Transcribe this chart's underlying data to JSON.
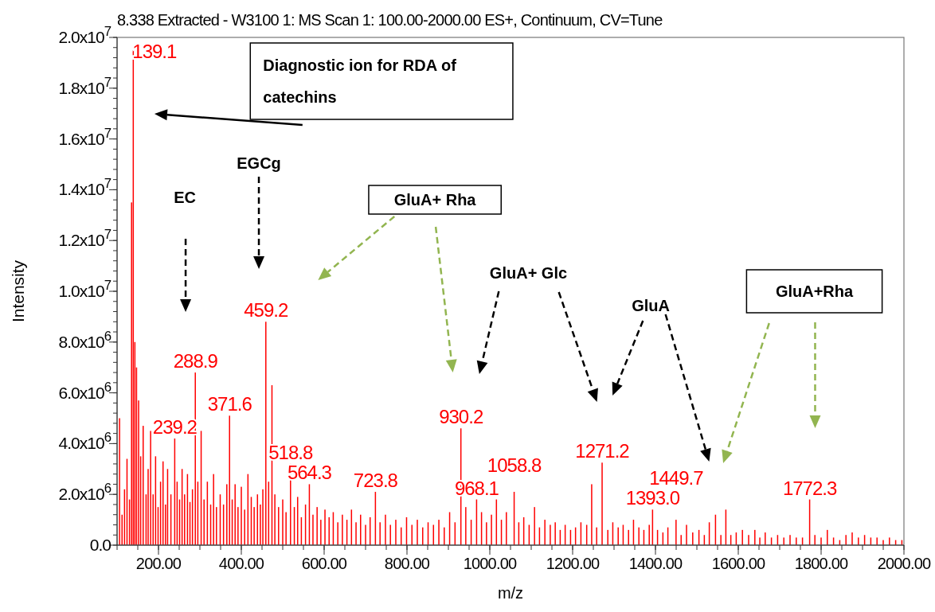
{
  "chart_data": {
    "type": "bar",
    "title": "8.338 Extracted - W3100 1: MS Scan 1: 100.00-2000.00 ES+, Continuum, CV=Tune",
    "xlabel": "m/z",
    "ylabel": "Intensity",
    "color": "#ff0000",
    "grid": false,
    "xlim": [
      100,
      2000
    ],
    "xticks": [
      {
        "value": 200,
        "label": "200.00"
      },
      {
        "value": 400,
        "label": "400.00"
      },
      {
        "value": 600,
        "label": "600.00"
      },
      {
        "value": 800,
        "label": "800.00"
      },
      {
        "value": 1000,
        "label": "1000.00"
      },
      {
        "value": 1200,
        "label": "1200.00"
      },
      {
        "value": 1400,
        "label": "1400.00"
      },
      {
        "value": 1600,
        "label": "1600.00"
      },
      {
        "value": 1800,
        "label": "1800.00"
      },
      {
        "value": 2000,
        "label": "2000.00"
      }
    ],
    "ylim": [
      0,
      20000000
    ],
    "yticks": [
      {
        "value": 0,
        "label": "0.0"
      },
      {
        "value": 2000000,
        "label": "2.0x10$^{6}$"
      },
      {
        "value": 4000000,
        "label": "4.0x10$^{6}$"
      },
      {
        "value": 6000000,
        "label": "6.0x10$^{6}$"
      },
      {
        "value": 8000000,
        "label": "8.0x10$^{6}$"
      },
      {
        "value": 10000000,
        "label": "1.0x10$^{7}$"
      },
      {
        "value": 12000000,
        "label": "1.2x10$^{7}$"
      },
      {
        "value": 14000000,
        "label": "1.4x10$^{7}$"
      },
      {
        "value": 16000000,
        "label": "1.6x10$^{7}$"
      },
      {
        "value": 18000000,
        "label": "1.8x10$^{7}$"
      },
      {
        "value": 20000000,
        "label": "2.0x10$^{7}$"
      }
    ],
    "x": [
      106,
      112,
      118,
      124,
      130,
      135,
      139.1,
      143,
      147,
      152,
      157,
      163,
      170,
      175,
      181,
      187,
      193,
      199,
      205,
      211,
      217,
      222,
      230,
      239.2,
      245,
      251,
      257,
      263,
      270,
      276,
      282,
      288.9,
      295,
      303,
      310,
      318,
      326,
      333,
      340,
      349,
      357,
      365,
      371.6,
      378,
      385,
      392,
      400,
      408,
      416,
      424,
      431,
      439,
      446,
      452,
      459.2,
      466,
      474,
      481,
      490,
      500,
      508,
      518.8,
      528,
      536,
      545,
      555,
      564.3,
      573,
      583,
      592,
      602,
      612,
      622,
      633,
      644,
      655,
      666,
      677,
      688,
      700,
      711,
      723.8,
      735,
      748,
      760,
      773,
      786,
      799,
      812,
      825,
      838,
      851,
      864,
      877,
      890,
      903,
      916,
      930.2,
      942,
      955,
      968.1,
      980,
      992,
      1004,
      1016,
      1028,
      1040,
      1058.8,
      1070,
      1082,
      1095,
      1108,
      1120,
      1133,
      1146,
      1158,
      1170,
      1182,
      1195,
      1207,
      1220,
      1234,
      1246,
      1258,
      1271.2,
      1285,
      1297,
      1310,
      1322,
      1335,
      1347,
      1360,
      1372,
      1385,
      1393.0,
      1405,
      1418,
      1430,
      1449.7,
      1462,
      1475,
      1490,
      1505,
      1518,
      1530,
      1545,
      1558,
      1570,
      1582,
      1595,
      1610,
      1625,
      1640,
      1652,
      1665,
      1680,
      1695,
      1710,
      1725,
      1740,
      1755,
      1772.3,
      1785,
      1800,
      1815,
      1830,
      1845,
      1860,
      1875,
      1890,
      1905,
      1920,
      1935,
      1950,
      1965,
      1980,
      1995
    ],
    "values": [
      5000000,
      1200000,
      2200000,
      3400000,
      1800000,
      13500000,
      19500000,
      8000000,
      7000000,
      5700000,
      3500000,
      4700000,
      2000000,
      3000000,
      4500000,
      2000000,
      3500000,
      1500000,
      2500000,
      3300000,
      1600000,
      3000000,
      2000000,
      4200000,
      2500000,
      1800000,
      3000000,
      2000000,
      2800000,
      1700000,
      2200000,
      6800000,
      2500000,
      4500000,
      1800000,
      2500000,
      1600000,
      2800000,
      1500000,
      2000000,
      1600000,
      2400000,
      5100000,
      1800000,
      2400000,
      1500000,
      2300000,
      1400000,
      2800000,
      1900000,
      1500000,
      2000000,
      1600000,
      2200000,
      8800000,
      2500000,
      6300000,
      2000000,
      1500000,
      1800000,
      1300000,
      3200000,
      1500000,
      1900000,
      1100000,
      1600000,
      2400000,
      1200000,
      1500000,
      1000000,
      1400000,
      1100000,
      1300000,
      900000,
      1200000,
      1000000,
      1400000,
      900000,
      1200000,
      800000,
      1100000,
      2100000,
      900000,
      1200000,
      800000,
      1000000,
      700000,
      1100000,
      800000,
      1000000,
      700000,
      900000,
      800000,
      1000000,
      700000,
      1300000,
      900000,
      4600000,
      1500000,
      1000000,
      1800000,
      1300000,
      900000,
      1200000,
      1800000,
      1000000,
      1300000,
      2100000,
      900000,
      1100000,
      800000,
      1500000,
      700000,
      1000000,
      800000,
      900000,
      600000,
      800000,
      600000,
      700000,
      900000,
      800000,
      2400000,
      700000,
      3250000,
      600000,
      900000,
      700000,
      800000,
      600000,
      1000000,
      700000,
      600000,
      800000,
      1400000,
      600000,
      500000,
      700000,
      1000000,
      400000,
      800000,
      500000,
      600000,
      400000,
      900000,
      1200000,
      400000,
      1400000,
      400000,
      500000,
      600000,
      400000,
      600000,
      300000,
      500000,
      300000,
      400000,
      300000,
      400000,
      300000,
      300000,
      1800000,
      400000,
      300000,
      600000,
      300000,
      200000,
      400000,
      500000,
      300000,
      400000,
      300000,
      300000,
      200000,
      300000,
      200000,
      200000
    ],
    "annotations": [
      "Diagnostic ion for RDA of catechins",
      "EC",
      "EGCg",
      "GluA+ Rha",
      "GluA+ Glc",
      "GluA",
      "GluA+Rha",
      {
        "text": "139.1",
        "x": 139.1,
        "y": 19500000
      },
      {
        "text": "288.9",
        "x": 288.9,
        "y": 6800000
      },
      {
        "text": "239.2",
        "x": 239.2,
        "y": 4200000
      },
      {
        "text": "371.6",
        "x": 371.6,
        "y": 5100000
      },
      {
        "text": "459.2",
        "x": 459.2,
        "y": 8800000
      },
      {
        "text": "518.8",
        "x": 518.8,
        "y": 3200000
      },
      {
        "text": "564.3",
        "x": 564.3,
        "y": 2400000
      },
      {
        "text": "723.8",
        "x": 723.8,
        "y": 2100000
      },
      {
        "text": "930.2",
        "x": 930.2,
        "y": 4600000
      },
      {
        "text": "968.1",
        "x": 968.1,
        "y": 1800000
      },
      {
        "text": "1058.8",
        "x": 1058.8,
        "y": 2100000
      },
      {
        "text": "1271.2",
        "x": 1271.2,
        "y": 3250000
      },
      {
        "text": "1393.0",
        "x": 1393.0,
        "y": 1400000
      },
      {
        "text": "1449.7",
        "x": 1449.7,
        "y": 1000000
      },
      {
        "text": "1772.3",
        "x": 1772.3,
        "y": 1800000
      }
    ]
  }
}
